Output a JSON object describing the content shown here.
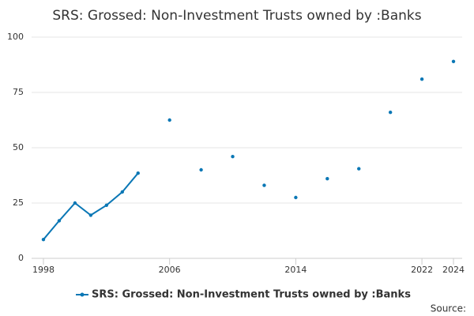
{
  "chart_data": {
    "type": "line",
    "title": "SRS: Grossed: Non-Investment Trusts owned by :Banks",
    "x": [
      1998,
      1999,
      2000,
      2001,
      2002,
      2003,
      2004,
      2005,
      2006,
      2007,
      2008,
      2009,
      2010,
      2011,
      2012,
      2013,
      2014,
      2015,
      2016,
      2017,
      2018,
      2019,
      2020,
      2021,
      2022,
      2023,
      2024
    ],
    "series": [
      {
        "name": "SRS: Grossed: Non-Investment Trusts owned by :Banks",
        "color": "#0a77b5",
        "values": [
          8.5,
          17,
          25,
          19.5,
          24,
          30,
          38.5,
          null,
          62.5,
          null,
          40,
          null,
          46,
          null,
          33,
          null,
          27.5,
          null,
          36,
          null,
          40.5,
          null,
          66,
          null,
          81,
          null,
          89
        ]
      }
    ],
    "xlim": [
      1997.25,
      2024.55
    ],
    "xticks": [
      1998,
      2006,
      2014,
      2022,
      2024
    ],
    "ylim": [
      0,
      100
    ],
    "yticks": [
      0,
      25,
      50,
      75,
      100
    ],
    "grid": true,
    "legend": "bottom",
    "source": "Source:"
  }
}
